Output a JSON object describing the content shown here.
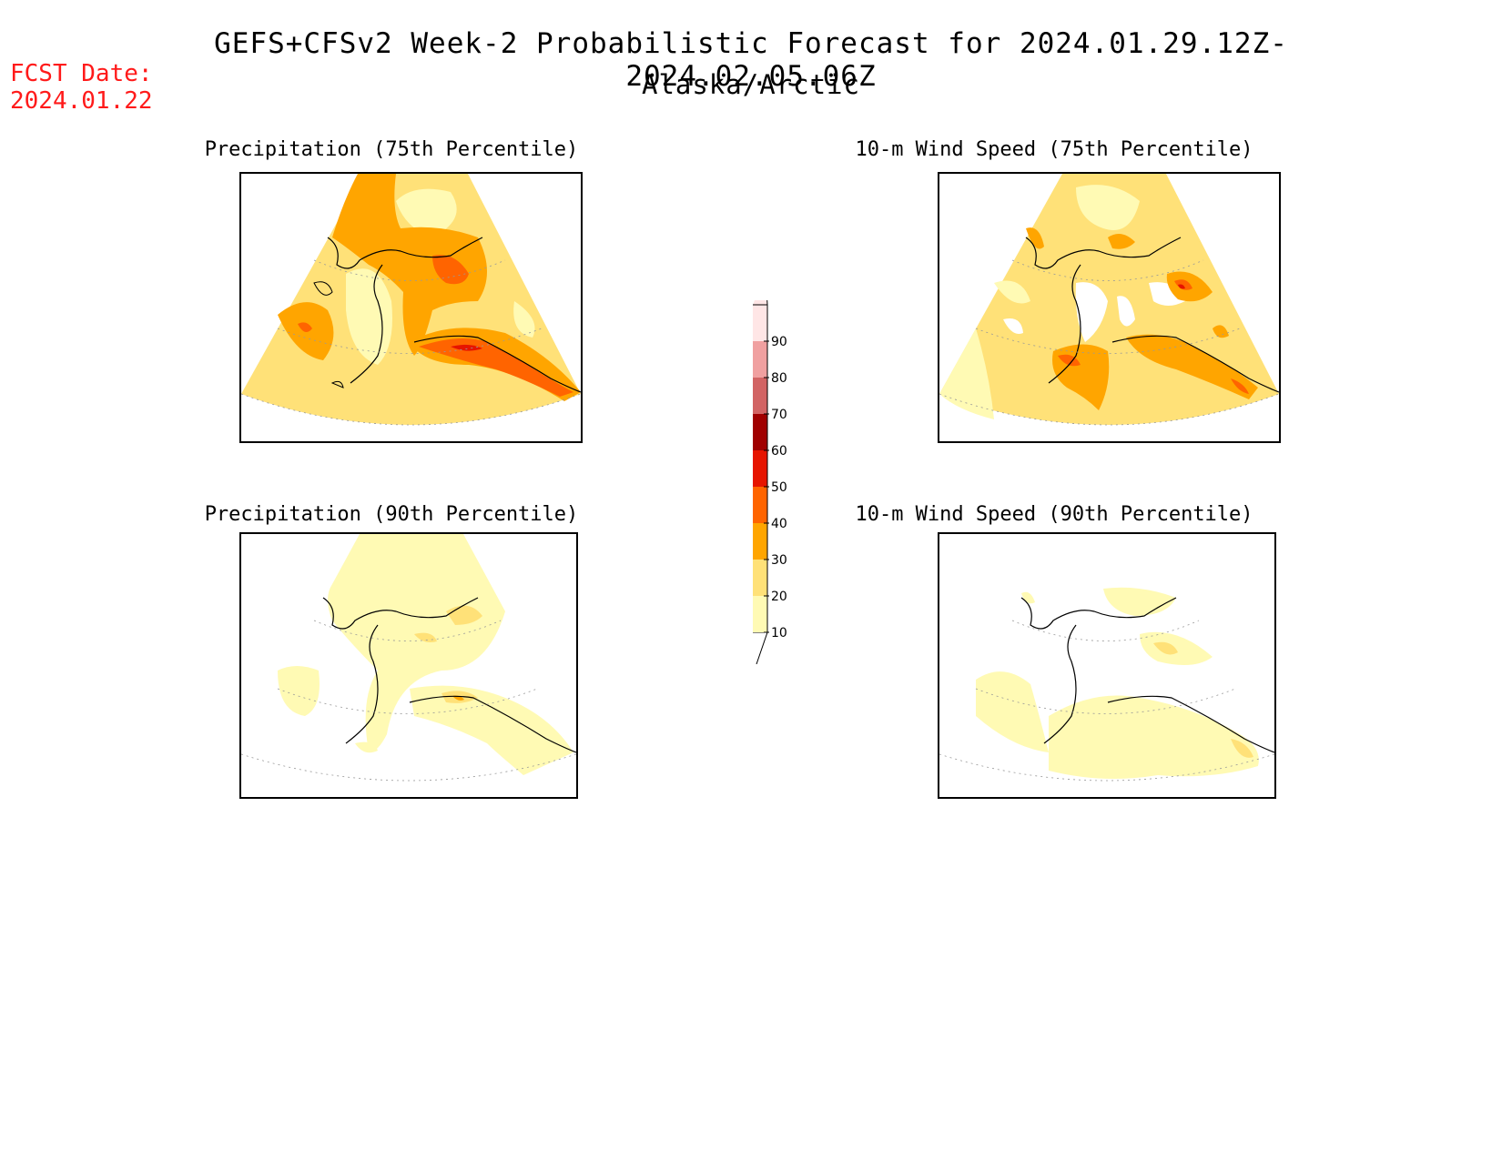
{
  "header": {
    "title": "GEFS+CFSv2 Week-2 Probabilistic Forecast for 2024.01.29.12Z-2024.02.05.06Z",
    "region": "Alaska/Arctic",
    "fcst_label": "FCST Date:",
    "fcst_date": "2024.01.22"
  },
  "panels": [
    {
      "title": "Precipitation (75th Percentile)"
    },
    {
      "title": "10-m Wind Speed (75th Percentile)"
    },
    {
      "title": "Precipitation (90th Percentile)"
    },
    {
      "title": "10-m Wind Speed (90th Percentile)"
    }
  ],
  "colorbar": {
    "levels": [
      "10",
      "20",
      "30",
      "40",
      "50",
      "60",
      "70",
      "80",
      "90"
    ],
    "colors": [
      "#fffab4",
      "#ffe178",
      "#ffa500",
      "#ff6400",
      "#e61400",
      "#a00000",
      "#d26464",
      "#f0a0a0",
      "#ffe6e6"
    ]
  }
}
